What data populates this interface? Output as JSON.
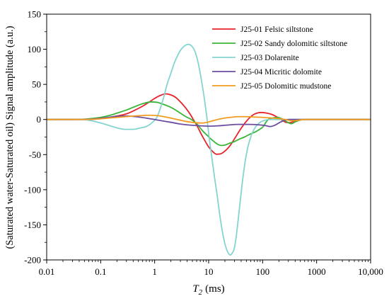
{
  "chart_data": {
    "type": "line",
    "xlabel": {
      "symbol": "T",
      "subscript": "2",
      "unit": "(ms)"
    },
    "ylabel": "(Saturated water-Saturated oil) Signal amplitude (a.u.)",
    "xscale": "log",
    "xlim": [
      0.01,
      10000
    ],
    "ylim": [
      -200,
      150
    ],
    "xticks": [
      0.01,
      0.1,
      1,
      10,
      100,
      1000,
      10000
    ],
    "xtick_labels": [
      "0.01",
      "0.1",
      "1",
      "10",
      "100",
      "1000",
      "10,000"
    ],
    "yticks": [
      150,
      100,
      50,
      0,
      -50,
      -100,
      -150,
      -200
    ],
    "ytick_labels": [
      "150",
      "100",
      "50",
      "0",
      "-50",
      "-100",
      "-150",
      "-200"
    ],
    "grid": false,
    "legend": "top-right",
    "series": [
      {
        "name": "J25-01 Felsic siltstone",
        "color": "#e8232a",
        "points": [
          [
            0.01,
            0
          ],
          [
            0.03,
            0
          ],
          [
            0.05,
            0
          ],
          [
            0.08,
            0.5
          ],
          [
            0.12,
            2
          ],
          [
            0.2,
            5
          ],
          [
            0.3,
            8
          ],
          [
            0.45,
            14
          ],
          [
            0.6,
            19
          ],
          [
            0.8,
            25
          ],
          [
            1,
            30
          ],
          [
            1.25,
            34
          ],
          [
            1.6,
            36.5
          ],
          [
            2,
            35
          ],
          [
            2.5,
            31
          ],
          [
            3,
            25
          ],
          [
            3.7,
            17
          ],
          [
            4.5,
            8
          ],
          [
            5.3,
            -1
          ],
          [
            6.2,
            -10
          ],
          [
            7.2,
            -20
          ],
          [
            8.5,
            -30
          ],
          [
            10,
            -39
          ],
          [
            12,
            -46
          ],
          [
            14,
            -49.5
          ],
          [
            16.5,
            -49
          ],
          [
            20,
            -45
          ],
          [
            25,
            -37
          ],
          [
            31,
            -26
          ],
          [
            38,
            -15
          ],
          [
            46,
            -6
          ],
          [
            55,
            1
          ],
          [
            65,
            6
          ],
          [
            78,
            9
          ],
          [
            95,
            10
          ],
          [
            120,
            9
          ],
          [
            150,
            7
          ],
          [
            190,
            3
          ],
          [
            230,
            -1
          ],
          [
            270,
            -4
          ],
          [
            320,
            -4.5
          ],
          [
            390,
            -2.5
          ],
          [
            480,
            -0.8
          ],
          [
            600,
            0
          ],
          [
            1000,
            0
          ],
          [
            3000,
            0
          ],
          [
            10000,
            0
          ]
        ]
      },
      {
        "name": "J25-02 Sandy dolomitic siltstone",
        "color": "#3bb43a",
        "points": [
          [
            0.01,
            0
          ],
          [
            0.03,
            0
          ],
          [
            0.05,
            0.5
          ],
          [
            0.07,
            1.5
          ],
          [
            0.1,
            3
          ],
          [
            0.15,
            6
          ],
          [
            0.2,
            9
          ],
          [
            0.3,
            13.5
          ],
          [
            0.42,
            18
          ],
          [
            0.6,
            22.5
          ],
          [
            0.85,
            25
          ],
          [
            1.1,
            24.5
          ],
          [
            1.4,
            22
          ],
          [
            1.9,
            18
          ],
          [
            2.5,
            13
          ],
          [
            3,
            9
          ],
          [
            3.8,
            4
          ],
          [
            4.8,
            0
          ],
          [
            6,
            -6
          ],
          [
            7.5,
            -15
          ],
          [
            9.5,
            -23
          ],
          [
            11.9,
            -30
          ],
          [
            14.5,
            -35
          ],
          [
            17,
            -37
          ],
          [
            20,
            -36.5
          ],
          [
            24,
            -34
          ],
          [
            29,
            -32
          ],
          [
            37,
            -28
          ],
          [
            46,
            -25
          ],
          [
            58,
            -21
          ],
          [
            72,
            -18
          ],
          [
            88,
            -14
          ],
          [
            103,
            -10
          ],
          [
            115,
            -4
          ],
          [
            128,
            0
          ],
          [
            150,
            2
          ],
          [
            190,
            3
          ],
          [
            240,
            0
          ],
          [
            290,
            -4
          ],
          [
            340,
            -6
          ],
          [
            400,
            -3.5
          ],
          [
            480,
            -1
          ],
          [
            600,
            0
          ],
          [
            1000,
            0
          ],
          [
            3000,
            0
          ],
          [
            10000,
            0
          ]
        ]
      },
      {
        "name": "J25-03 Dolarenite",
        "color": "#84d4d1",
        "points": [
          [
            0.01,
            0
          ],
          [
            0.03,
            0
          ],
          [
            0.045,
            0
          ],
          [
            0.06,
            -1
          ],
          [
            0.08,
            -3
          ],
          [
            0.1,
            -5
          ],
          [
            0.15,
            -9
          ],
          [
            0.2,
            -12
          ],
          [
            0.28,
            -14
          ],
          [
            0.4,
            -14
          ],
          [
            0.55,
            -12
          ],
          [
            0.7,
            -10
          ],
          [
            0.85,
            -6
          ],
          [
            1.0,
            -1
          ],
          [
            1.1,
            3
          ],
          [
            1.25,
            14
          ],
          [
            1.45,
            30
          ],
          [
            1.7,
            50
          ],
          [
            2.0,
            66
          ],
          [
            2.3,
            80
          ],
          [
            2.7,
            92
          ],
          [
            3.1,
            100
          ],
          [
            3.6,
            105
          ],
          [
            4.2,
            107
          ],
          [
            4.8,
            105
          ],
          [
            5.5,
            98
          ],
          [
            6.3,
            83
          ],
          [
            7.2,
            60
          ],
          [
            8.2,
            33
          ],
          [
            9.2,
            5
          ],
          [
            10.2,
            -25
          ],
          [
            11.5,
            -55
          ],
          [
            13,
            -85
          ],
          [
            14.5,
            -110
          ],
          [
            16,
            -135
          ],
          [
            18,
            -160
          ],
          [
            20.5,
            -180
          ],
          [
            23,
            -190
          ],
          [
            25,
            -193
          ],
          [
            27,
            -191
          ],
          [
            29.5,
            -185
          ],
          [
            32,
            -170
          ],
          [
            35,
            -145
          ],
          [
            38,
            -120
          ],
          [
            42,
            -90
          ],
          [
            47,
            -62
          ],
          [
            53,
            -40
          ],
          [
            62,
            -22
          ],
          [
            75,
            -10
          ],
          [
            90,
            -4
          ],
          [
            110,
            -1
          ],
          [
            140,
            0
          ],
          [
            300,
            0
          ],
          [
            1000,
            0
          ],
          [
            3000,
            0
          ],
          [
            10000,
            0
          ]
        ]
      },
      {
        "name": "J25-04 Micritic dolomite",
        "color": "#6b4ea2",
        "points": [
          [
            0.01,
            0
          ],
          [
            0.03,
            0
          ],
          [
            0.05,
            0
          ],
          [
            0.08,
            1
          ],
          [
            0.12,
            2.5
          ],
          [
            0.2,
            4.5
          ],
          [
            0.3,
            5
          ],
          [
            0.45,
            4
          ],
          [
            0.7,
            2
          ],
          [
            1,
            0
          ],
          [
            1.4,
            -2
          ],
          [
            2,
            -4
          ],
          [
            3,
            -6.5
          ],
          [
            4.5,
            -8
          ],
          [
            7,
            -9
          ],
          [
            10,
            -9.5
          ],
          [
            15,
            -9
          ],
          [
            22,
            -8
          ],
          [
            35,
            -7
          ],
          [
            55,
            -7
          ],
          [
            80,
            -7.5
          ],
          [
            110,
            -8.5
          ],
          [
            140,
            -10
          ],
          [
            170,
            -8
          ],
          [
            210,
            -4
          ],
          [
            260,
            -1
          ],
          [
            320,
            0
          ],
          [
            1000,
            0
          ],
          [
            3000,
            0
          ],
          [
            10000,
            0
          ]
        ]
      },
      {
        "name": "J25-05 Dolomitic mudstone",
        "color": "#f39b1f",
        "points": [
          [
            0.01,
            0
          ],
          [
            0.03,
            0
          ],
          [
            0.05,
            0
          ],
          [
            0.1,
            1
          ],
          [
            0.2,
            3
          ],
          [
            0.35,
            4.5
          ],
          [
            0.55,
            5.5
          ],
          [
            0.85,
            6
          ],
          [
            1.1,
            5.5
          ],
          [
            1.5,
            4
          ],
          [
            2,
            2
          ],
          [
            3,
            -1
          ],
          [
            4,
            -3
          ],
          [
            5.5,
            -4.5
          ],
          [
            7.5,
            -5
          ],
          [
            10,
            -3.5
          ],
          [
            13,
            -1
          ],
          [
            18,
            1.5
          ],
          [
            25,
            3
          ],
          [
            35,
            4
          ],
          [
            50,
            4
          ],
          [
            70,
            3.5
          ],
          [
            100,
            3
          ],
          [
            150,
            2
          ],
          [
            220,
            1
          ],
          [
            300,
            -1
          ],
          [
            360,
            -2
          ],
          [
            450,
            -1
          ],
          [
            600,
            0
          ],
          [
            1000,
            0
          ],
          [
            3000,
            0
          ],
          [
            10000,
            0
          ]
        ]
      }
    ]
  }
}
